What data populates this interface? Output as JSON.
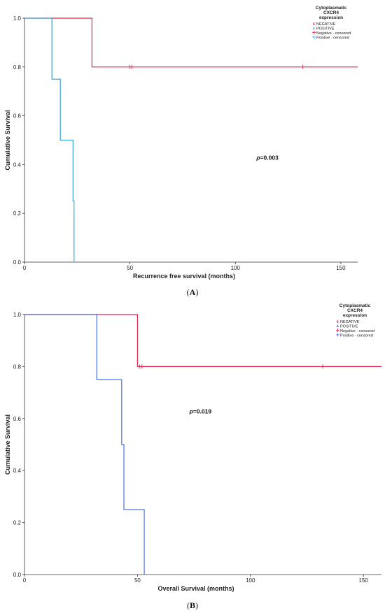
{
  "chart_data": [
    {
      "type": "line",
      "panel_label": "A",
      "xlabel": "Recurrence free survival (months)",
      "ylabel": "Cumulative Survival",
      "xlim": [
        0,
        158
      ],
      "ylim": [
        0,
        1.0
      ],
      "x_ticks": [
        "0",
        "50",
        "100",
        "150"
      ],
      "y_ticks": [
        "0.0",
        "0.2",
        "0.4",
        "0.6",
        "0.8",
        "1.0"
      ],
      "annotation": {
        "italic": "p",
        "rest": "=0.003",
        "x": 110,
        "y": 0.42
      },
      "legend_title": [
        "Cytoplasmatic",
        "CXCR4",
        "expression"
      ],
      "legend": [
        "NEGATIVE",
        "POSITIVE",
        "Negative - censored",
        "Positive - censored"
      ],
      "series": [
        {
          "name": "NEGATIVE",
          "color": "#e0284e",
          "steps": [
            [
              0,
              1.0
            ],
            [
              32,
              0.8
            ],
            [
              158,
              0.8
            ]
          ],
          "censored": [
            50,
            51,
            132
          ]
        },
        {
          "name": "POSITIVE",
          "color": "#3aa6dd",
          "steps": [
            [
              0,
              1.0
            ],
            [
              13,
              0.75
            ],
            [
              17,
              0.5
            ],
            [
              23,
              0.25
            ],
            [
              23.5,
              0.0
            ]
          ],
          "censored": []
        }
      ]
    },
    {
      "type": "line",
      "panel_label": "B",
      "xlabel": "Overall Survival (months)",
      "ylabel": "Cumulative Survival",
      "xlim": [
        0,
        158
      ],
      "ylim": [
        0,
        1.0
      ],
      "x_ticks": [
        "0",
        "50",
        "100",
        "150"
      ],
      "y_ticks": [
        "0.0",
        "0.2",
        "0.4",
        "0.6",
        "0.8",
        "1.0"
      ],
      "annotation": {
        "italic": "p",
        "rest": "=0.019",
        "x": 73,
        "y": 0.62
      },
      "legend_title": [
        "Cytoplasmatic",
        "CXCR4",
        "expression"
      ],
      "legend": [
        "NEGATIVE",
        "POSITIVE",
        "Negative - censored",
        "Positive - censored"
      ],
      "series": [
        {
          "name": "NEGATIVE",
          "color": "#e0284e",
          "steps": [
            [
              0,
              1.0
            ],
            [
              50,
              0.8
            ],
            [
              158,
              0.8
            ]
          ],
          "censored": [
            51,
            52,
            132
          ]
        },
        {
          "name": "POSITIVE",
          "color": "#4a6fe0",
          "steps": [
            [
              0,
              1.0
            ],
            [
              32,
              0.75
            ],
            [
              43,
              0.5
            ],
            [
              44,
              0.25
            ],
            [
              53,
              0.0
            ]
          ],
          "censored": []
        }
      ]
    }
  ]
}
